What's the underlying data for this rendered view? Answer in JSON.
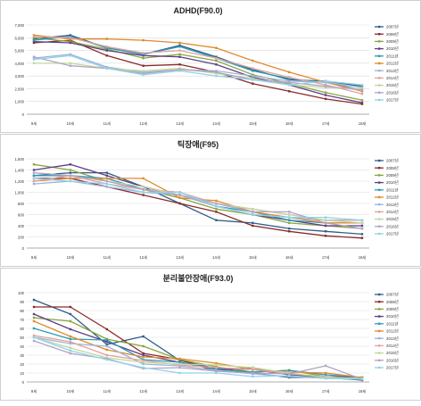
{
  "chart_data": [
    {
      "type": "line",
      "title": "ADHD(F90.0)",
      "categories": [
        "9세",
        "10세",
        "11세",
        "12세",
        "13세",
        "14세",
        "15세",
        "16세",
        "17세",
        "18세"
      ],
      "ylim": [
        0,
        7000
      ],
      "yticks": [
        "0",
        "1,000",
        "2,000",
        "3,000",
        "4,000",
        "5,000",
        "6,000",
        "7,000"
      ],
      "grid": true,
      "legend": "right",
      "series": [
        {
          "name": "2007년",
          "color": "#2f5d8a",
          "values": [
            5900,
            6200,
            5200,
            4700,
            5400,
            4500,
            3500,
            2700,
            2600,
            2200
          ]
        },
        {
          "name": "2008년",
          "color": "#8b2b2b",
          "values": [
            5600,
            5800,
            4600,
            3800,
            3900,
            3300,
            2400,
            1800,
            1200,
            800
          ]
        },
        {
          "name": "2009년",
          "color": "#8aa53f",
          "values": [
            6000,
            5700,
            5100,
            4400,
            4700,
            4200,
            3100,
            2400,
            1700,
            1100
          ]
        },
        {
          "name": "2010년",
          "color": "#5e3f86",
          "values": [
            5700,
            5600,
            5000,
            4600,
            4500,
            3900,
            2900,
            2300,
            1500,
            900
          ]
        },
        {
          "name": "2011년",
          "color": "#2b9bb5",
          "values": [
            5800,
            6100,
            5200,
            4700,
            5300,
            4400,
            3400,
            2800,
            2500,
            1900
          ]
        },
        {
          "name": "2012년",
          "color": "#e08a2e",
          "values": [
            6200,
            5900,
            5900,
            5800,
            5600,
            5200,
            4200,
            3300,
            2500,
            1800
          ]
        },
        {
          "name": "2013년",
          "color": "#9db3d8",
          "values": [
            4400,
            4700,
            3700,
            3300,
            3500,
            3400,
            3000,
            2600,
            2500,
            2100
          ]
        },
        {
          "name": "2014년",
          "color": "#e0a2a0",
          "values": [
            6100,
            6000,
            5300,
            4800,
            5000,
            4400,
            3600,
            2900,
            2300,
            1600
          ]
        },
        {
          "name": "2015년",
          "color": "#c3d69b",
          "values": [
            4000,
            4000,
            3600,
            3400,
            3600,
            3200,
            2800,
            2300,
            2100,
            2000
          ]
        },
        {
          "name": "2016년",
          "color": "#b3a2c7",
          "values": [
            4500,
            3800,
            3600,
            3200,
            3500,
            3300,
            2700,
            2500,
            2200,
            1900
          ]
        },
        {
          "name": "2017년",
          "color": "#8fd3e8",
          "values": [
            4300,
            4600,
            3600,
            3100,
            3400,
            3000,
            2700,
            2300,
            2600,
            2300
          ]
        }
      ]
    },
    {
      "type": "line",
      "title": "틱장애(F95)",
      "categories": [
        "9세",
        "10세",
        "11세",
        "12세",
        "13세",
        "14세",
        "15세",
        "16세",
        "17세",
        "18세"
      ],
      "ylim": [
        0,
        1600
      ],
      "yticks": [
        "0",
        "200",
        "400",
        "600",
        "800",
        "1,000",
        "1,200",
        "1,400",
        "1,600"
      ],
      "grid": true,
      "legend": "right",
      "series": [
        {
          "name": "2007년",
          "color": "#2f5d8a",
          "values": [
            1300,
            1350,
            1350,
            1100,
            800,
            500,
            450,
            350,
            300,
            250
          ]
        },
        {
          "name": "2008년",
          "color": "#8b2b2b",
          "values": [
            1250,
            1250,
            1100,
            950,
            800,
            650,
            400,
            300,
            220,
            180
          ]
        },
        {
          "name": "2009년",
          "color": "#8aa53f",
          "values": [
            1500,
            1400,
            1200,
            1050,
            900,
            700,
            600,
            450,
            400,
            350
          ]
        },
        {
          "name": "2010년",
          "color": "#5e3f86",
          "values": [
            1400,
            1500,
            1300,
            1100,
            950,
            750,
            600,
            500,
            400,
            400
          ]
        },
        {
          "name": "2011년",
          "color": "#2b9bb5",
          "values": [
            1300,
            1300,
            1250,
            1050,
            1000,
            750,
            650,
            500,
            450,
            450
          ]
        },
        {
          "name": "2012년",
          "color": "#e08a2e",
          "values": [
            1200,
            1250,
            1250,
            1250,
            900,
            850,
            650,
            550,
            450,
            450
          ]
        },
        {
          "name": "2013년",
          "color": "#9db3d8",
          "values": [
            1150,
            1200,
            1100,
            1000,
            950,
            750,
            600,
            550,
            500,
            500
          ]
        },
        {
          "name": "2014년",
          "color": "#e0a2a0",
          "values": [
            1200,
            1300,
            1150,
            1050,
            1000,
            800,
            700,
            600,
            500,
            500
          ]
        },
        {
          "name": "2015년",
          "color": "#c3d69b",
          "values": [
            1350,
            1300,
            1200,
            1100,
            950,
            800,
            700,
            600,
            500,
            450
          ]
        },
        {
          "name": "2016년",
          "color": "#b3a2c7",
          "values": [
            1350,
            1300,
            1200,
            1050,
            950,
            800,
            650,
            650,
            450,
            350
          ]
        },
        {
          "name": "2017년",
          "color": "#8fd3e8",
          "values": [
            1250,
            1200,
            1150,
            1000,
            1000,
            750,
            600,
            550,
            550,
            500
          ]
        }
      ]
    },
    {
      "type": "line",
      "title": "분리불안장애(F93.0)",
      "categories": [
        "9세",
        "10세",
        "11세",
        "12세",
        "13세",
        "14세",
        "15세",
        "16세",
        "17세",
        "18세"
      ],
      "ylim": [
        0,
        100
      ],
      "yticks": [
        "0",
        "10",
        "20",
        "30",
        "40",
        "50",
        "60",
        "70",
        "80",
        "90",
        "100"
      ],
      "grid": true,
      "legend": "right",
      "series": [
        {
          "name": "2007년",
          "color": "#2f5d8a",
          "values": [
            92,
            76,
            42,
            51,
            24,
            15,
            10,
            5,
            5,
            2
          ]
        },
        {
          "name": "2008년",
          "color": "#8b2b2b",
          "values": [
            84,
            84,
            59,
            32,
            25,
            12,
            16,
            8,
            5,
            4
          ]
        },
        {
          "name": "2009년",
          "color": "#8aa53f",
          "values": [
            72,
            68,
            48,
            40,
            25,
            17,
            11,
            13,
            6,
            5
          ]
        },
        {
          "name": "2010년",
          "color": "#5e3f86",
          "values": [
            76,
            59,
            45,
            30,
            22,
            15,
            14,
            8,
            6,
            5
          ]
        },
        {
          "name": "2011년",
          "color": "#2b9bb5",
          "values": [
            60,
            48,
            47,
            25,
            22,
            14,
            11,
            13,
            8,
            5
          ]
        },
        {
          "name": "2012년",
          "color": "#e08a2e",
          "values": [
            68,
            51,
            36,
            28,
            26,
            21,
            14,
            11,
            10,
            5
          ]
        },
        {
          "name": "2013년",
          "color": "#9db3d8",
          "values": [
            50,
            43,
            40,
            20,
            18,
            13,
            9,
            6,
            4,
            3
          ]
        },
        {
          "name": "2014년",
          "color": "#e0a2a0",
          "values": [
            52,
            45,
            30,
            24,
            19,
            16,
            14,
            9,
            6,
            3
          ]
        },
        {
          "name": "2015년",
          "color": "#c3d69b",
          "values": [
            50,
            38,
            27,
            22,
            20,
            19,
            16,
            10,
            5,
            4
          ]
        },
        {
          "name": "2016년",
          "color": "#b3a2c7",
          "values": [
            46,
            32,
            26,
            15,
            16,
            12,
            10,
            9,
            18,
            3
          ]
        },
        {
          "name": "2017년",
          "color": "#8fd3e8",
          "values": [
            50,
            35,
            25,
            16,
            10,
            10,
            6,
            7,
            4,
            3
          ]
        }
      ]
    }
  ]
}
